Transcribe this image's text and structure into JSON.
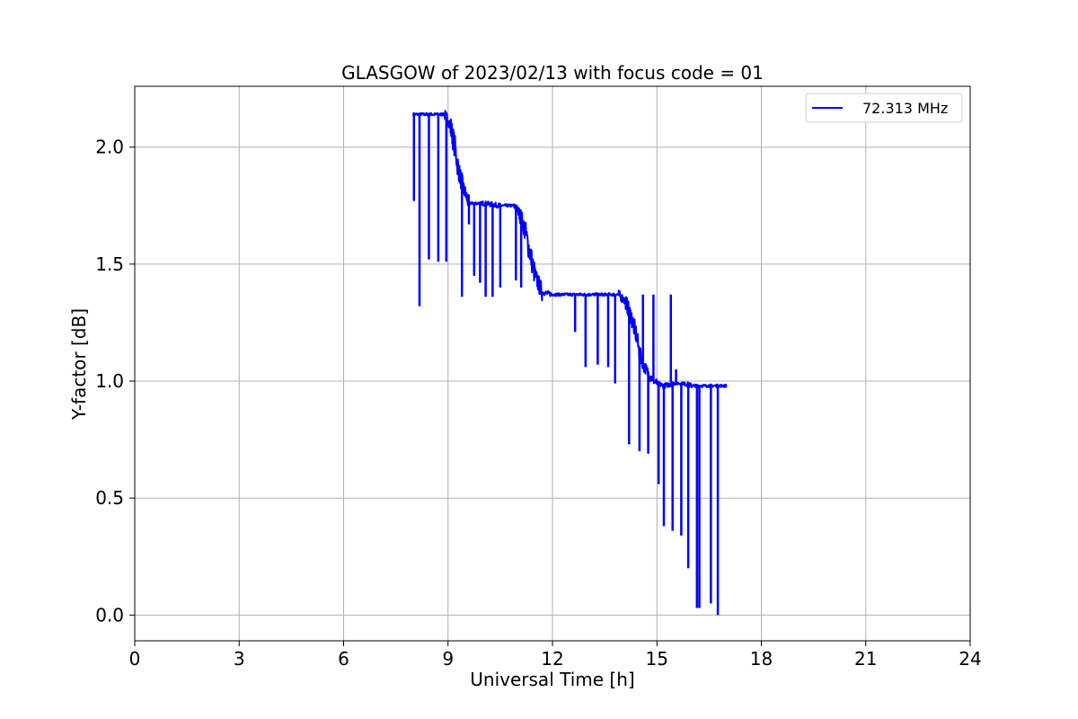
{
  "chart_data": {
    "type": "line",
    "title": "GLASGOW of 2023/02/13 with focus code = 01",
    "xlabel": "Universal Time [h]",
    "ylabel": "Y-factor [dB]",
    "xlim": [
      0,
      24
    ],
    "ylim": [
      -0.11,
      2.26
    ],
    "xticks": [
      "0",
      "3",
      "6",
      "9",
      "12",
      "15",
      "18",
      "21",
      "24"
    ],
    "xtick_values": [
      0,
      3,
      6,
      9,
      12,
      15,
      18,
      21,
      24
    ],
    "yticks": [
      "0.0",
      "0.5",
      "1.0",
      "1.5",
      "2.0"
    ],
    "ytick_values": [
      0.0,
      0.5,
      1.0,
      1.5,
      2.0
    ],
    "grid": true,
    "legend_position": "top-right",
    "series": [
      {
        "name": "72.313 MHz",
        "color": "#0000ff",
        "x": [
          8.0,
          8.3,
          8.6,
          8.9,
          9.05,
          9.2,
          9.3,
          9.45,
          9.6,
          10.0,
          10.5,
          10.9,
          11.05,
          11.2,
          11.35,
          11.5,
          11.7,
          12.0,
          12.5,
          13.0,
          13.5,
          13.9,
          14.1,
          14.25,
          14.4,
          14.5,
          14.65,
          14.8,
          15.0,
          15.2,
          15.5,
          15.8,
          16.0,
          16.5,
          17.0
        ],
        "values": [
          2.14,
          2.14,
          2.14,
          2.14,
          2.1,
          2.0,
          1.9,
          1.82,
          1.76,
          1.76,
          1.75,
          1.75,
          1.72,
          1.65,
          1.55,
          1.45,
          1.38,
          1.37,
          1.37,
          1.37,
          1.37,
          1.37,
          1.34,
          1.28,
          1.2,
          1.12,
          1.06,
          1.02,
          0.99,
          0.98,
          0.99,
          0.99,
          0.98,
          0.98,
          0.98
        ],
        "dips": [
          {
            "x": 8.02,
            "y": 1.77
          },
          {
            "x": 8.18,
            "y": 1.32
          },
          {
            "x": 8.45,
            "y": 1.52
          },
          {
            "x": 8.72,
            "y": 1.51
          },
          {
            "x": 8.95,
            "y": 1.51
          },
          {
            "x": 9.4,
            "y": 1.36
          },
          {
            "x": 9.6,
            "y": 1.67
          },
          {
            "x": 9.75,
            "y": 1.45
          },
          {
            "x": 9.92,
            "y": 1.42
          },
          {
            "x": 10.08,
            "y": 1.36
          },
          {
            "x": 10.28,
            "y": 1.36
          },
          {
            "x": 10.5,
            "y": 1.4
          },
          {
            "x": 10.95,
            "y": 1.43
          },
          {
            "x": 11.1,
            "y": 1.4
          },
          {
            "x": 12.65,
            "y": 1.21
          },
          {
            "x": 12.95,
            "y": 1.06
          },
          {
            "x": 13.3,
            "y": 1.07
          },
          {
            "x": 13.6,
            "y": 1.06
          },
          {
            "x": 13.8,
            "y": 0.99
          },
          {
            "x": 14.2,
            "y": 0.73
          },
          {
            "x": 14.5,
            "y": 0.7
          },
          {
            "x": 14.75,
            "y": 0.69
          },
          {
            "x": 14.95,
            "y": 1.0
          },
          {
            "x": 15.05,
            "y": 0.56
          },
          {
            "x": 15.2,
            "y": 0.38
          },
          {
            "x": 15.45,
            "y": 0.36
          },
          {
            "x": 15.7,
            "y": 0.34
          },
          {
            "x": 15.9,
            "y": 0.2
          },
          {
            "x": 16.15,
            "y": 0.03
          },
          {
            "x": 16.22,
            "y": 0.03
          },
          {
            "x": 16.55,
            "y": 0.05
          },
          {
            "x": 16.75,
            "y": 0.0
          }
        ],
        "spikes": [
          {
            "x": 14.6,
            "y": 1.37
          },
          {
            "x": 14.9,
            "y": 1.37
          },
          {
            "x": 15.4,
            "y": 1.37
          },
          {
            "x": 15.55,
            "y": 1.05
          }
        ]
      }
    ]
  }
}
